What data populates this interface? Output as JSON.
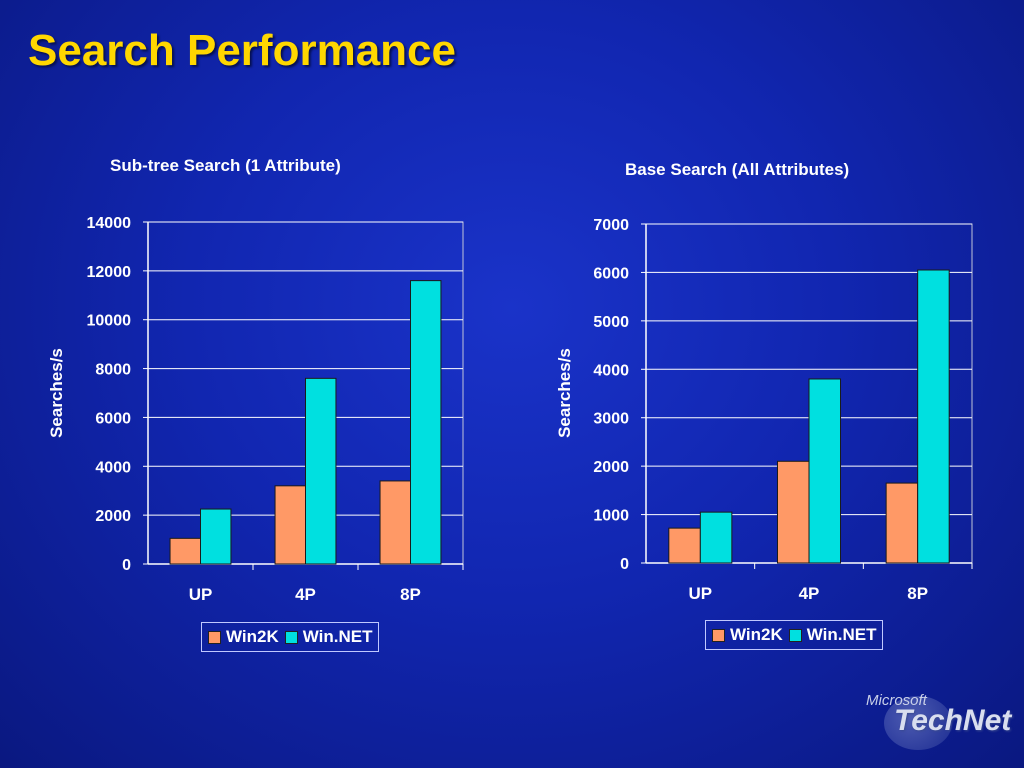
{
  "slide": {
    "title": "Search Performance"
  },
  "colors": {
    "win2k": "#ff9966",
    "winnet": "#00e0e0",
    "grid": "#ffffff",
    "bar_edge": "#1a1a1a"
  },
  "logo": {
    "text_top": "Microsoft",
    "text_main": "TechNet"
  },
  "chart_data": [
    {
      "type": "bar",
      "title": "Sub-tree Search (1 Attribute)",
      "ylabel": "Searches/s",
      "xlabel": "",
      "categories": [
        "UP",
        "4P",
        "8P"
      ],
      "ylim": [
        0,
        14000
      ],
      "yticks": [
        0,
        2000,
        4000,
        6000,
        8000,
        10000,
        12000,
        14000
      ],
      "series": [
        {
          "name": "Win2K",
          "values": [
            1050,
            3200,
            3400
          ]
        },
        {
          "name": "Win.NET",
          "values": [
            2250,
            7600,
            11600
          ]
        }
      ],
      "grid": true,
      "legend": "bottom"
    },
    {
      "type": "bar",
      "title": "Base Search (All Attributes)",
      "ylabel": "Searches/s",
      "xlabel": "",
      "categories": [
        "UP",
        "4P",
        "8P"
      ],
      "ylim": [
        0,
        7000
      ],
      "yticks": [
        0,
        1000,
        2000,
        3000,
        4000,
        5000,
        6000,
        7000
      ],
      "series": [
        {
          "name": "Win2K",
          "values": [
            720,
            2100,
            1650
          ]
        },
        {
          "name": "Win.NET",
          "values": [
            1050,
            3800,
            6050
          ]
        }
      ],
      "grid": true,
      "legend": "bottom"
    }
  ]
}
